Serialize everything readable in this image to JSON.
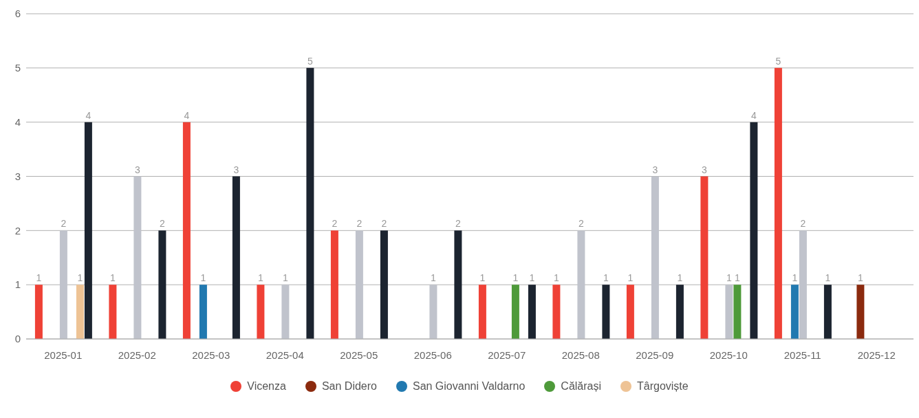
{
  "chart_data": {
    "type": "bar",
    "categories": [
      "2025-01",
      "2025-02",
      "2025-03",
      "2025-04",
      "2025-05",
      "2025-06",
      "2025-07",
      "2025-08",
      "2025-09",
      "2025-10",
      "2025-11",
      "2025-12"
    ],
    "series": [
      {
        "name": "Vicenza",
        "color": "#ef4136",
        "values": [
          1,
          1,
          4,
          1,
          2,
          null,
          1,
          1,
          1,
          3,
          5,
          null
        ]
      },
      {
        "name": "San Didero",
        "color": "#8b2a0e",
        "values": [
          null,
          null,
          null,
          null,
          null,
          null,
          null,
          null,
          null,
          null,
          null,
          1
        ]
      },
      {
        "name": "San Giovanni Valdarno",
        "color": "#2179b0",
        "values": [
          null,
          null,
          1,
          null,
          null,
          null,
          null,
          null,
          null,
          null,
          1,
          null
        ]
      },
      {
        "color": "#c0c3cc",
        "values": [
          2,
          3,
          null,
          1,
          2,
          1,
          null,
          2,
          3,
          1,
          2,
          null
        ]
      },
      {
        "name": "Călărași",
        "color": "#4e9a3a",
        "values": [
          null,
          null,
          null,
          null,
          null,
          null,
          1,
          null,
          null,
          1,
          null,
          null
        ]
      },
      {
        "name": "Târgoviște",
        "color": "#eec395",
        "values": [
          1,
          null,
          null,
          null,
          null,
          null,
          null,
          null,
          null,
          null,
          null,
          null
        ]
      },
      {
        "color": "#1c2430",
        "values": [
          4,
          2,
          3,
          5,
          2,
          2,
          1,
          1,
          1,
          4,
          1,
          null
        ]
      }
    ],
    "ylim": [
      0,
      6
    ],
    "yticks": [
      0,
      1,
      2,
      3,
      4,
      5,
      6
    ],
    "grid": "y",
    "legend": "bottom",
    "data_labels": true
  }
}
